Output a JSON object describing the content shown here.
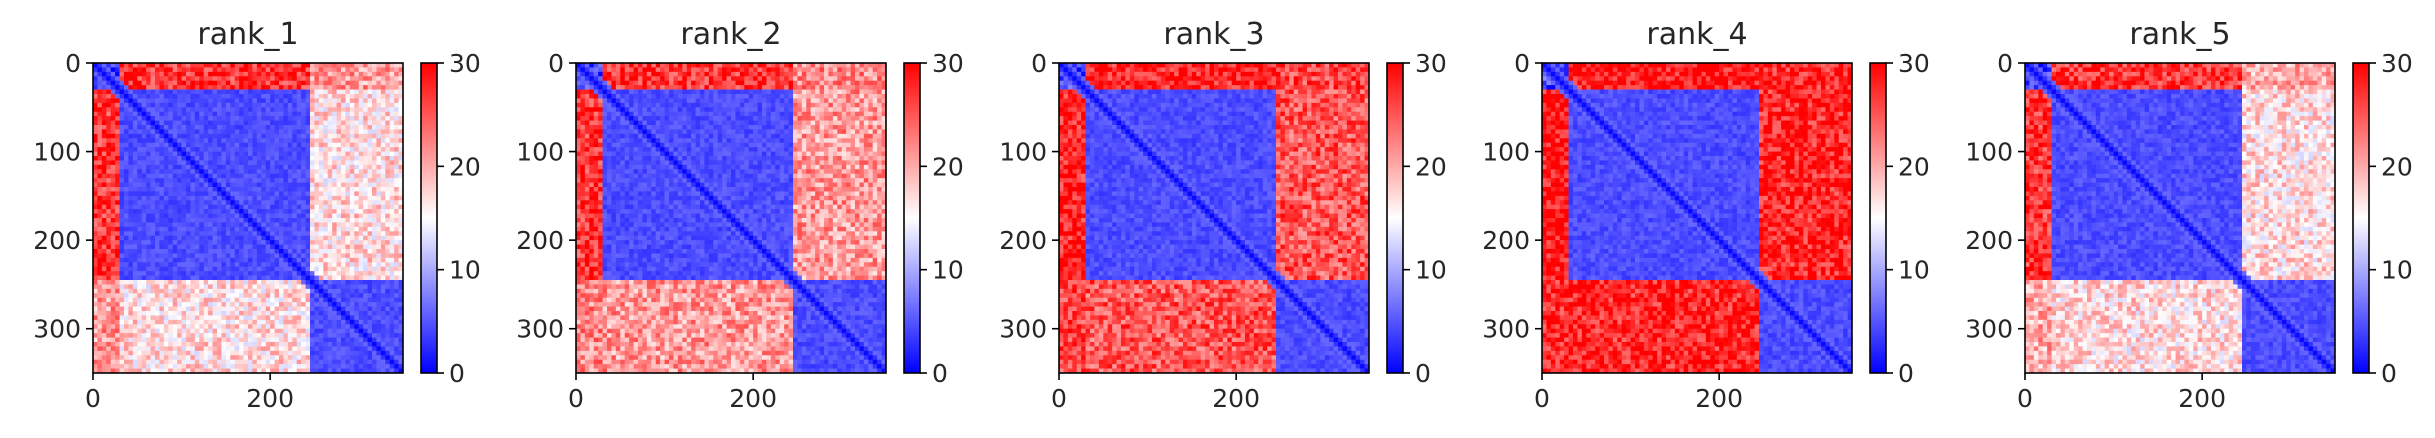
{
  "chart_data": [
    {
      "type": "heatmap",
      "title": "rank_1",
      "xlim": [
        0,
        350
      ],
      "ylim": [
        350,
        0
      ],
      "xticks": [
        0,
        200
      ],
      "yticks": [
        0,
        100,
        200,
        300
      ],
      "xtick_labels": [
        "0",
        "200"
      ],
      "ytick_labels": [
        "0",
        "100",
        "200",
        "300"
      ],
      "colorbar": {
        "range": [
          0,
          30
        ],
        "ticks": [
          0,
          10,
          20,
          30
        ],
        "tick_labels": [
          "0",
          "10",
          "20",
          "30"
        ],
        "colors": [
          "#0000ff",
          "#ffffff",
          "#ff0000"
        ]
      },
      "domains": [
        [
          0,
          30
        ],
        [
          30,
          245
        ],
        [
          245,
          350
        ]
      ],
      "block_means": [
        [
          4,
          27,
          21
        ],
        [
          27,
          3,
          17
        ],
        [
          21,
          17,
          3
        ]
      ]
    },
    {
      "type": "heatmap",
      "title": "rank_2",
      "xlim": [
        0,
        350
      ],
      "ylim": [
        350,
        0
      ],
      "xticks": [
        0,
        200
      ],
      "yticks": [
        0,
        100,
        200,
        300
      ],
      "xtick_labels": [
        "0",
        "200"
      ],
      "ytick_labels": [
        "0",
        "100",
        "200",
        "300"
      ],
      "colorbar": {
        "range": [
          0,
          30
        ],
        "ticks": [
          0,
          10,
          20,
          30
        ],
        "tick_labels": [
          "0",
          "10",
          "20",
          "30"
        ],
        "colors": [
          "#0000ff",
          "#ffffff",
          "#ff0000"
        ]
      },
      "domains": [
        [
          0,
          30
        ],
        [
          30,
          245
        ],
        [
          245,
          350
        ]
      ],
      "block_means": [
        [
          4,
          27,
          22
        ],
        [
          27,
          3,
          21
        ],
        [
          22,
          21,
          3
        ]
      ]
    },
    {
      "type": "heatmap",
      "title": "rank_3",
      "xlim": [
        0,
        350
      ],
      "ylim": [
        350,
        0
      ],
      "xticks": [
        0,
        200
      ],
      "yticks": [
        0,
        100,
        200,
        300
      ],
      "xtick_labels": [
        "0",
        "200"
      ],
      "ytick_labels": [
        "0",
        "100",
        "200",
        "300"
      ],
      "colorbar": {
        "range": [
          0,
          30
        ],
        "ticks": [
          0,
          10,
          20,
          30
        ],
        "tick_labels": [
          "0",
          "10",
          "20",
          "30"
        ],
        "colors": [
          "#0000ff",
          "#ffffff",
          "#ff0000"
        ]
      },
      "domains": [
        [
          0,
          30
        ],
        [
          30,
          245
        ],
        [
          245,
          350
        ]
      ],
      "block_means": [
        [
          4,
          28,
          26
        ],
        [
          28,
          3,
          25
        ],
        [
          26,
          25,
          3
        ]
      ]
    },
    {
      "type": "heatmap",
      "title": "rank_4",
      "xlim": [
        0,
        350
      ],
      "ylim": [
        350,
        0
      ],
      "xticks": [
        0,
        200
      ],
      "yticks": [
        0,
        100,
        200,
        300
      ],
      "xtick_labels": [
        "0",
        "200"
      ],
      "ytick_labels": [
        "0",
        "100",
        "200",
        "300"
      ],
      "colorbar": {
        "range": [
          0,
          30
        ],
        "ticks": [
          0,
          10,
          20,
          30
        ],
        "tick_labels": [
          "0",
          "10",
          "20",
          "30"
        ],
        "colors": [
          "#0000ff",
          "#ffffff",
          "#ff0000"
        ]
      },
      "domains": [
        [
          0,
          30
        ],
        [
          30,
          245
        ],
        [
          245,
          350
        ]
      ],
      "block_means": [
        [
          4,
          29,
          28
        ],
        [
          29,
          3,
          28
        ],
        [
          28,
          28,
          3
        ]
      ]
    },
    {
      "type": "heatmap",
      "title": "rank_5",
      "xlim": [
        0,
        350
      ],
      "ylim": [
        350,
        0
      ],
      "xticks": [
        0,
        200
      ],
      "yticks": [
        0,
        100,
        200,
        300
      ],
      "xtick_labels": [
        "0",
        "200"
      ],
      "ytick_labels": [
        "0",
        "100",
        "200",
        "300"
      ],
      "colorbar": {
        "range": [
          0,
          30
        ],
        "ticks": [
          0,
          10,
          20,
          30
        ],
        "tick_labels": [
          "0",
          "10",
          "20",
          "30"
        ],
        "colors": [
          "#0000ff",
          "#ffffff",
          "#ff0000"
        ]
      },
      "domains": [
        [
          0,
          30
        ],
        [
          30,
          245
        ],
        [
          245,
          350
        ]
      ],
      "block_means": [
        [
          4,
          27,
          20
        ],
        [
          27,
          3,
          17
        ],
        [
          20,
          17,
          3
        ]
      ]
    }
  ]
}
